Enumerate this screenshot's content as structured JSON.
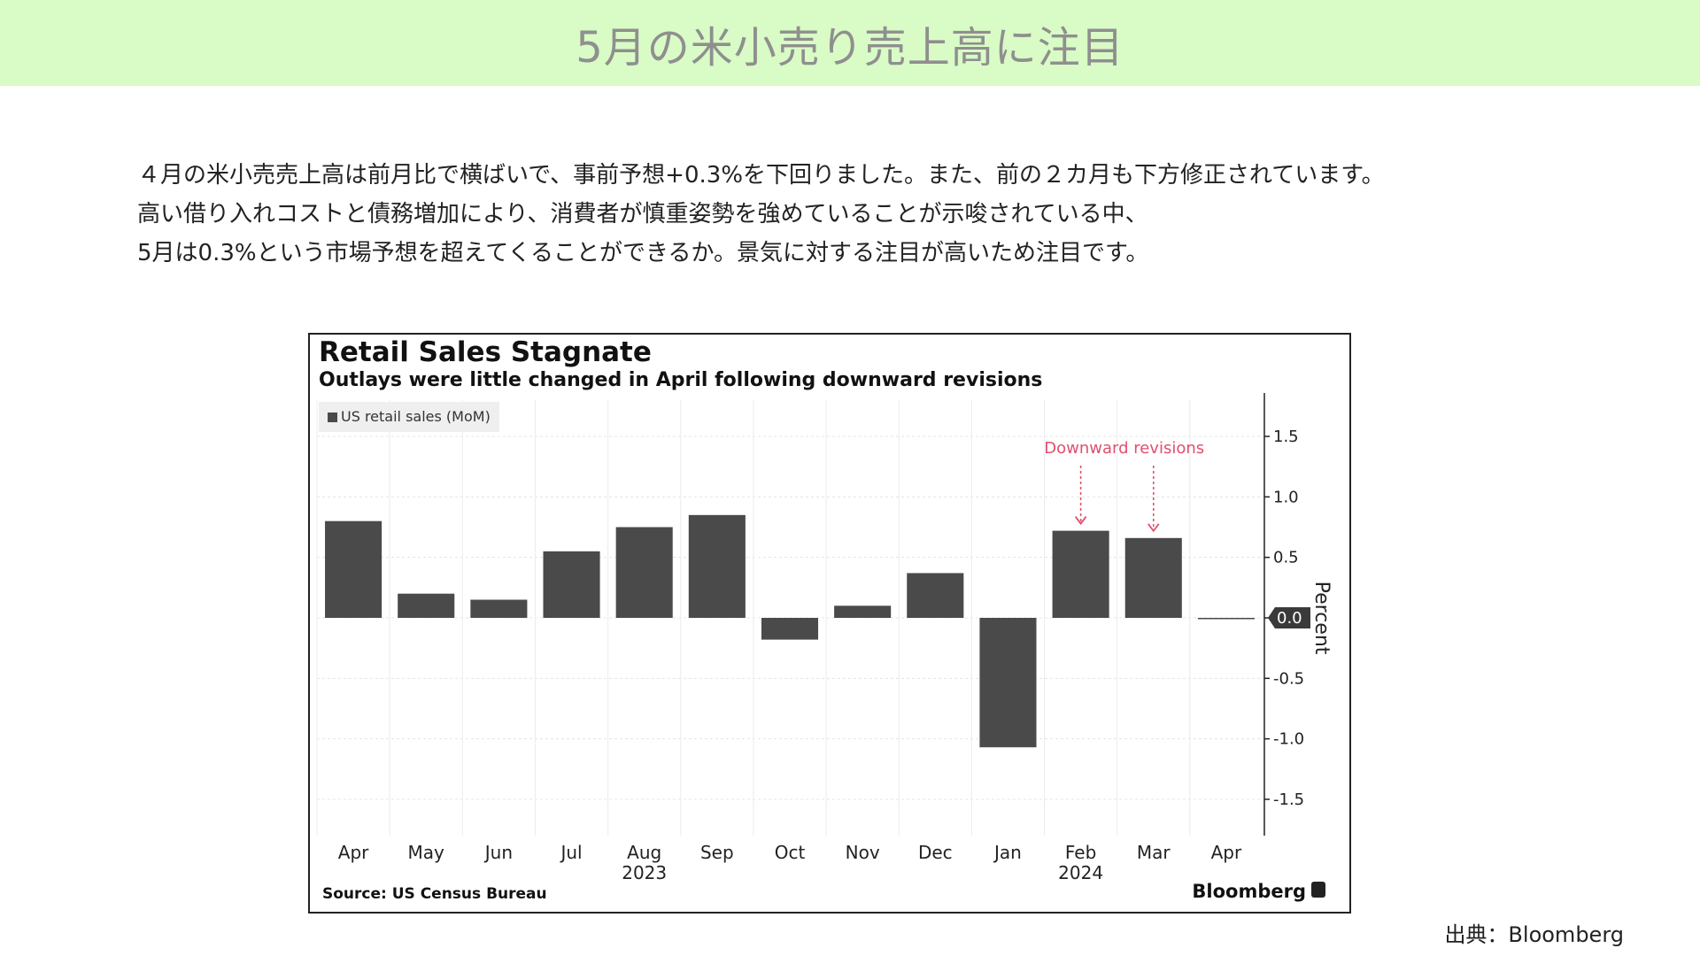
{
  "header": {
    "title": "5月の米小売り売上高に注目"
  },
  "intro": {
    "lines": [
      "４月の米小売売上高は前月比で横ばいで、事前予想+0.3%を下回りました。また、前の２カ月も下方修正されています。",
      "高い借り入れコストと債務増加により、消費者が慎重姿勢を強めていることが示唆されている中、",
      "5月は0.3%という市場予想を超えてくることができるか。景気に対する注目が高いため注目です。"
    ]
  },
  "chart_data": {
    "type": "bar",
    "title": "Retail Sales Stagnate",
    "subtitle": "Outlays were little changed in April following downward revisions",
    "categories": [
      "Apr",
      "May",
      "Jun",
      "Jul",
      "Aug",
      "Sep",
      "Oct",
      "Nov",
      "Dec",
      "Jan",
      "Feb",
      "Mar",
      "Apr"
    ],
    "year_labels": [
      {
        "label": "2023",
        "under": "Aug"
      },
      {
        "label": "2024",
        "under": "Feb"
      }
    ],
    "series": [
      {
        "name": "US retail sales (MoM)",
        "values": [
          0.8,
          0.2,
          0.15,
          0.55,
          0.75,
          0.85,
          -0.18,
          0.1,
          0.37,
          -1.07,
          0.72,
          0.66,
          0.0
        ]
      }
    ],
    "ylabel": "Percent",
    "ylim": [
      -1.8,
      1.8
    ],
    "yticks": [
      1.5,
      1.0,
      0.5,
      0.0,
      -0.5,
      -1.0,
      -1.5
    ],
    "ytick_labels": [
      "1.5",
      "1.0",
      "0.5",
      "0.0",
      "-0.5",
      "-1.0",
      "-1.5"
    ],
    "grid": true,
    "legend_position": "top-left",
    "bar_color": "#4a4a4a",
    "annotation": {
      "text": "Downward revisions",
      "targets": [
        "Feb",
        "Mar"
      ],
      "color": "#e0506e"
    },
    "source": "Source: US Census Bureau",
    "brand": "Bloomberg"
  },
  "footer": {
    "credit": "出典：Bloomberg"
  }
}
